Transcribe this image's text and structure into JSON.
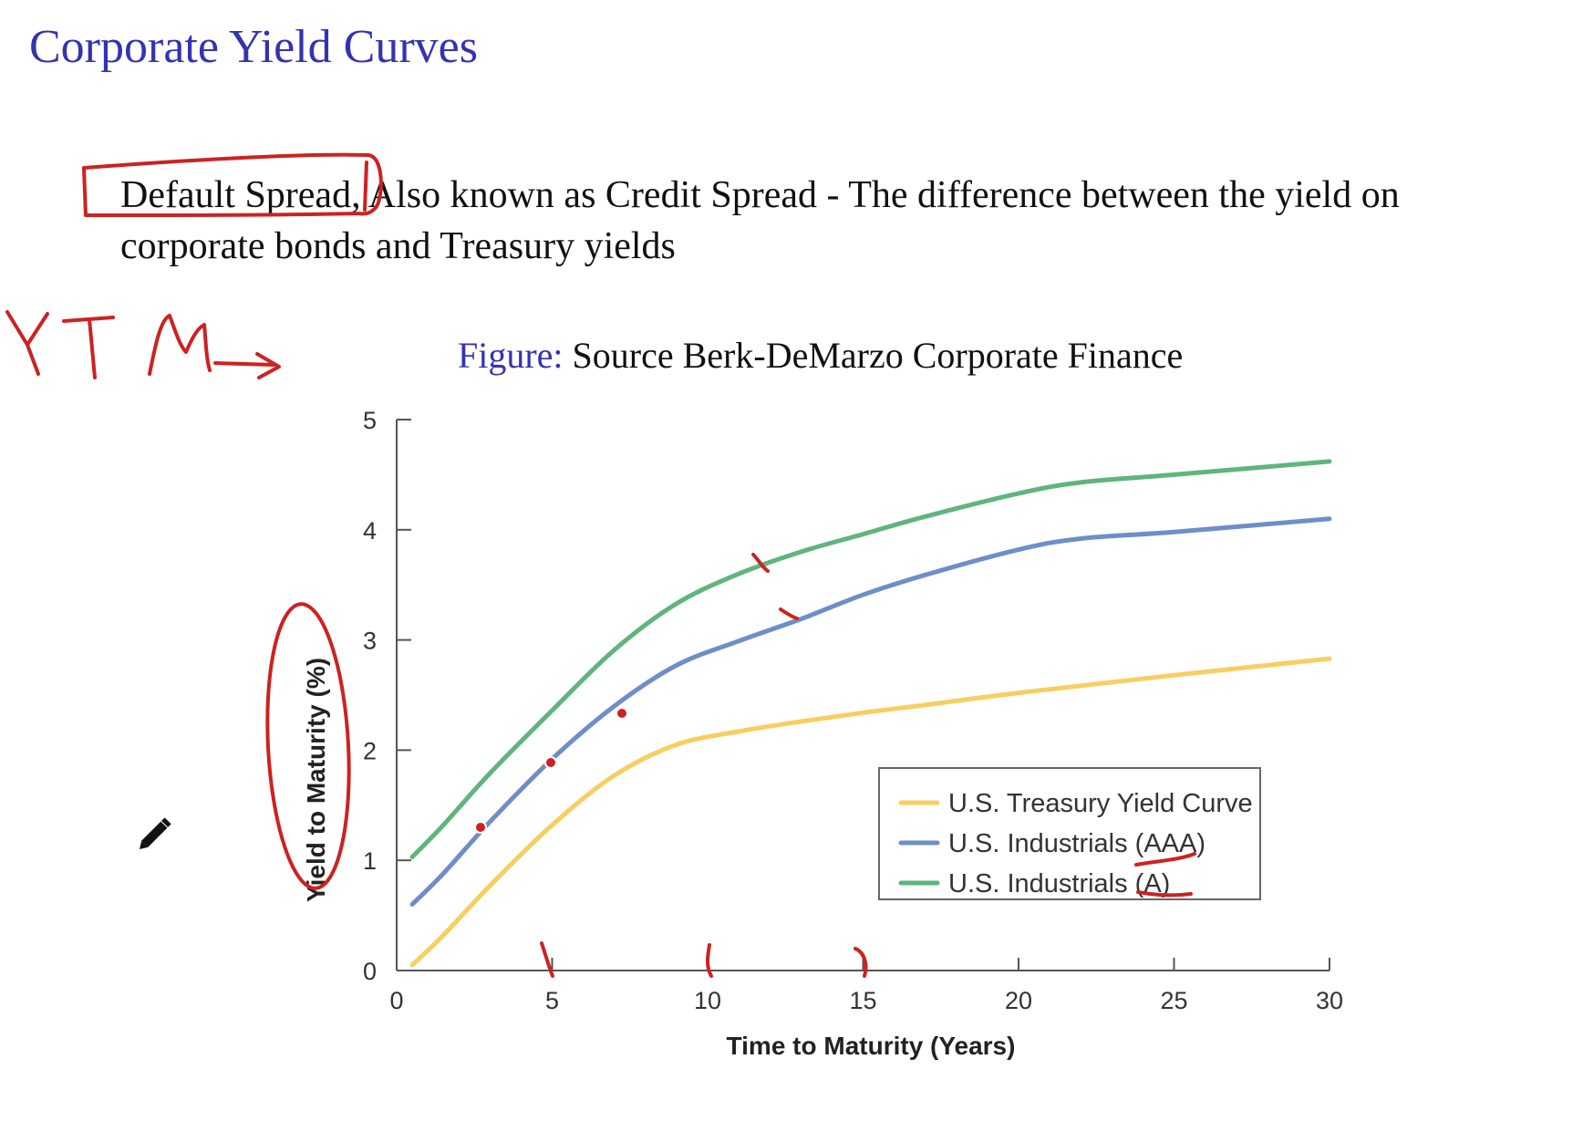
{
  "slide": {
    "title": "Corporate Yield Curves",
    "bullet": {
      "term": "Default Spread,",
      "text": " Also known as Credit Spread - The difference between the yield on corporate bonds and Treasury yields"
    },
    "caption": {
      "label": "Figure:",
      "text": " Source Berk-DeMarzo Corporate Finance"
    }
  },
  "annotations": {
    "handwritten_text": "YTM"
  },
  "chart_data": {
    "type": "line",
    "xlabel": "Time to Maturity (Years)",
    "ylabel": "Yield to Maturity (%)",
    "xlim": [
      0,
      30
    ],
    "ylim": [
      0,
      5
    ],
    "xticks": [
      "0",
      "5",
      "10",
      "15",
      "20",
      "25",
      "30"
    ],
    "yticks": [
      "0",
      "1",
      "2",
      "3",
      "4",
      "5"
    ],
    "grid": false,
    "legend_position": "bottom-right",
    "series": [
      {
        "name": "U.S. Treasury Yield Curve",
        "color": "#f7cf60",
        "x": [
          0.5,
          1.5,
          3,
          5,
          7,
          9,
          11,
          13,
          15,
          17,
          20,
          25,
          30
        ],
        "y": [
          0.05,
          0.32,
          0.77,
          1.32,
          1.77,
          2.05,
          2.17,
          2.26,
          2.34,
          2.41,
          2.52,
          2.68,
          2.83
        ]
      },
      {
        "name": "U.S. Industrials (AAA)",
        "color": "#6d8ec9",
        "x": [
          0.5,
          1.5,
          3,
          5,
          7,
          9,
          11,
          13,
          15,
          17,
          20,
          22,
          25,
          30
        ],
        "y": [
          0.6,
          0.88,
          1.35,
          1.92,
          2.4,
          2.77,
          2.99,
          3.19,
          3.41,
          3.59,
          3.82,
          3.92,
          3.98,
          4.1
        ]
      },
      {
        "name": "U.S. Industrials (A)",
        "color": "#5fb57d",
        "x": [
          0.5,
          1.5,
          3,
          5,
          7,
          9,
          11,
          13,
          15,
          17,
          20,
          22,
          25,
          30
        ],
        "y": [
          1.03,
          1.32,
          1.79,
          2.36,
          2.91,
          3.33,
          3.6,
          3.8,
          3.96,
          4.12,
          4.33,
          4.43,
          4.5,
          4.62
        ]
      }
    ]
  }
}
